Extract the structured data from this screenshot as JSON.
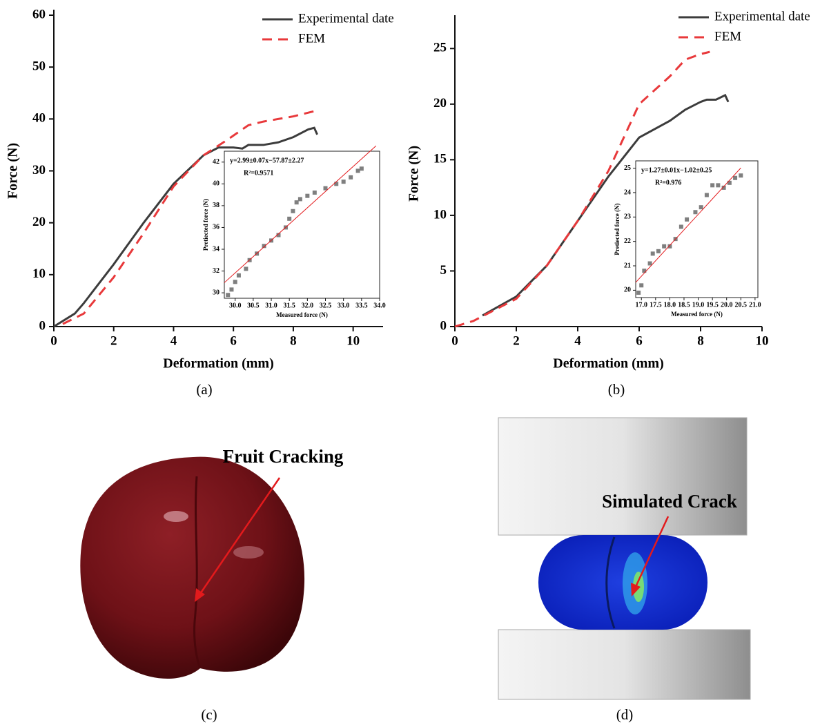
{
  "chart_data": [
    {
      "type": "line",
      "xlabel": "Deformation (mm)",
      "ylabel": "Force (N)",
      "xlim": [
        0,
        11
      ],
      "ylim": [
        0,
        60
      ],
      "xticks": [
        0,
        2,
        4,
        6,
        8,
        10
      ],
      "yticks": [
        0,
        10,
        20,
        30,
        40,
        50,
        60
      ],
      "legend": "upper right",
      "series": [
        {
          "name": "Experimental date",
          "color": "#3c3c3c",
          "dash": "solid",
          "x": [
            0,
            0.7,
            1,
            2,
            3,
            4,
            5,
            5.5,
            6,
            6.3,
            6.5,
            7,
            7.5,
            8,
            8.5,
            8.7,
            8.8
          ],
          "values": [
            0,
            2.5,
            4.5,
            12,
            20,
            27.5,
            33,
            34.5,
            34.5,
            34.3,
            35,
            35,
            35.5,
            36.5,
            38,
            38.3,
            37
          ]
        },
        {
          "name": "FEM",
          "color": "#e8393b",
          "dash": "dashed",
          "x": [
            0.3,
            1,
            2,
            3,
            4,
            5,
            5.8,
            6.5,
            7,
            8,
            8.7
          ],
          "values": [
            0.5,
            2.5,
            9.5,
            18,
            27,
            33,
            36,
            38.8,
            39.5,
            40.5,
            41.5
          ]
        }
      ]
    },
    {
      "type": "scatter",
      "xlabel": "Measured force (N)",
      "ylabel": "Pretiected force (N)",
      "xlim": [
        29.7,
        34.0
      ],
      "ylim": [
        29.5,
        43
      ],
      "xticks": [
        {
          "value": 30,
          "label": "30.0"
        },
        {
          "value": 30.5,
          "label": "30.5"
        },
        {
          "value": 31,
          "label": "31.0"
        },
        {
          "value": 31.5,
          "label": "31.5"
        },
        {
          "value": 32,
          "label": "32.0"
        },
        {
          "value": 32.5,
          "label": "32.5"
        },
        {
          "value": 33,
          "label": "33.0"
        },
        {
          "value": 33.5,
          "label": "33.5"
        },
        {
          "value": 34,
          "label": "34.0"
        }
      ],
      "yticks": [
        30,
        32,
        34,
        36,
        38,
        40,
        42
      ],
      "annotations": [
        "y=2.99±0.07x−57.87±2.27",
        "R²=0.9571"
      ],
      "series": [
        {
          "style": "markers",
          "color": "#7f7f7f",
          "x": [
            29.8,
            29.9,
            30.0,
            30.1,
            30.3,
            30.4,
            30.6,
            30.8,
            31.0,
            31.2,
            31.4,
            31.5,
            31.6,
            31.7,
            31.8,
            32.0,
            32.2,
            32.5,
            32.8,
            33.0,
            33.2,
            33.4,
            33.5
          ],
          "values": [
            29.8,
            30.3,
            31,
            31.6,
            32.2,
            33,
            33.6,
            34.3,
            34.8,
            35.3,
            36,
            36.8,
            37.5,
            38.3,
            38.6,
            38.9,
            39.2,
            39.6,
            40,
            40.2,
            40.6,
            41.2,
            41.4
          ]
        },
        {
          "style": "line",
          "color": "#e3191c",
          "x": [
            29.7,
            33.9
          ],
          "values": [
            30.93,
            43.49
          ]
        }
      ]
    },
    {
      "type": "line",
      "xlabel": "Deformation (mm)",
      "ylabel": "Force (N)",
      "xlim": [
        0,
        10
      ],
      "ylim": [
        0,
        27.5
      ],
      "xticks": [
        0,
        2,
        4,
        6,
        8,
        10
      ],
      "yticks": [
        0,
        5,
        10,
        15,
        20,
        25
      ],
      "legend": "upper right",
      "series": [
        {
          "name": "Experimental date",
          "color": "#3c3c3c",
          "dash": "solid",
          "x": [
            0.9,
            2,
            3,
            4,
            5,
            6,
            7,
            7.5,
            8,
            8.2,
            8.5,
            8.8,
            8.9
          ],
          "values": [
            1,
            2.7,
            5.5,
            9.5,
            13.5,
            17,
            18.5,
            19.5,
            20.2,
            20.4,
            20.4,
            20.8,
            20.2
          ]
        },
        {
          "name": "FEM",
          "color": "#e8393b",
          "dash": "dashed",
          "x": [
            0,
            0.6,
            2,
            3,
            4,
            5,
            6,
            7,
            7.5,
            8,
            8.3
          ],
          "values": [
            0,
            0.5,
            2.5,
            5.5,
            9.5,
            14,
            20,
            22.5,
            24,
            24.5,
            24.7
          ]
        }
      ]
    },
    {
      "type": "scatter",
      "xlabel": "Measured force (N)",
      "ylabel": "Pretiected force (N)",
      "xlim": [
        16.8,
        21.1
      ],
      "ylim": [
        19.7,
        25.3
      ],
      "xticks": [
        {
          "value": 17,
          "label": "17.0"
        },
        {
          "value": 17.5,
          "label": "17.5"
        },
        {
          "value": 18,
          "label": "18.0"
        },
        {
          "value": 18.5,
          "label": "18.5"
        },
        {
          "value": 19,
          "label": "19.0"
        },
        {
          "value": 19.5,
          "label": "19.5"
        },
        {
          "value": 20,
          "label": "20.0"
        },
        {
          "value": 20.5,
          "label": "20.5"
        },
        {
          "value": 21,
          "label": "21.0"
        }
      ],
      "yticks": [
        20,
        21,
        22,
        23,
        24,
        25
      ],
      "annotations": [
        "y=1.27±0.01x−1.02±0.25",
        "R²=0.976"
      ],
      "series": [
        {
          "style": "markers",
          "color": "#7f7f7f",
          "x": [
            16.9,
            17.0,
            17.1,
            17.3,
            17.4,
            17.6,
            17.8,
            18.0,
            18.2,
            18.4,
            18.6,
            18.9,
            19.1,
            19.3,
            19.5,
            19.7,
            19.9,
            20.1,
            20.3,
            20.5
          ],
          "values": [
            19.9,
            20.2,
            20.8,
            21.1,
            21.5,
            21.6,
            21.8,
            21.8,
            22.1,
            22.6,
            22.9,
            23.2,
            23.4,
            23.9,
            24.3,
            24.3,
            24.2,
            24.4,
            24.6,
            24.7
          ]
        },
        {
          "style": "line",
          "color": "#e3191c",
          "x": [
            16.8,
            20.5
          ],
          "values": [
            20.32,
            25.01
          ]
        }
      ]
    }
  ],
  "panels": [
    "(a)",
    "(b)",
    "(c)",
    "(d)"
  ],
  "photos": {
    "cherry_note": "Fruit Cracking",
    "model_note": "Simulated Crack"
  }
}
